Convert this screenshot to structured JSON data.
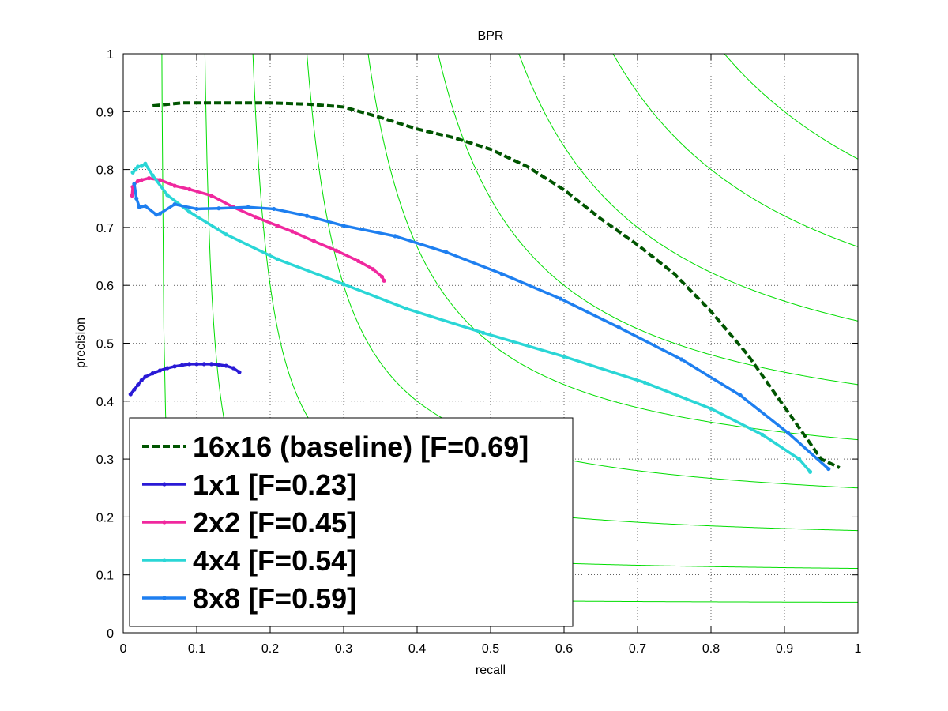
{
  "chart_data": {
    "type": "line",
    "title": "BPR",
    "xlabel": "recall",
    "ylabel": "precision",
    "xlim": [
      0,
      1
    ],
    "ylim": [
      0,
      1
    ],
    "xticks": [
      "0",
      "0.1",
      "0.2",
      "0.3",
      "0.4",
      "0.5",
      "0.6",
      "0.7",
      "0.8",
      "0.9",
      "1"
    ],
    "yticks": [
      "0",
      "0.1",
      "0.2",
      "0.3",
      "0.4",
      "0.5",
      "0.6",
      "0.7",
      "0.8",
      "0.9",
      "1"
    ],
    "grid": true,
    "legend_position": "bottom-left",
    "iso_f_curves": {
      "color": "#00dd00",
      "f_values": [
        0.1,
        0.2,
        0.3,
        0.4,
        0.5,
        0.6,
        0.7,
        0.8,
        0.9
      ]
    },
    "series": [
      {
        "name": "16x16 (baseline) [F=0.69]",
        "color": "#005500",
        "dashed": true,
        "markers": false,
        "x": [
          0.04,
          0.08,
          0.15,
          0.2,
          0.25,
          0.3,
          0.35,
          0.4,
          0.45,
          0.5,
          0.55,
          0.6,
          0.65,
          0.7,
          0.75,
          0.8,
          0.85,
          0.9,
          0.95,
          0.975
        ],
        "y": [
          0.91,
          0.915,
          0.915,
          0.915,
          0.913,
          0.908,
          0.89,
          0.87,
          0.855,
          0.835,
          0.805,
          0.765,
          0.715,
          0.67,
          0.62,
          0.555,
          0.48,
          0.39,
          0.3,
          0.285
        ]
      },
      {
        "name": "1x1 [F=0.23]",
        "color": "#2a1ad6",
        "dashed": false,
        "markers": true,
        "x": [
          0.01,
          0.015,
          0.02,
          0.025,
          0.03,
          0.04,
          0.05,
          0.06,
          0.07,
          0.08,
          0.09,
          0.1,
          0.11,
          0.12,
          0.13,
          0.14,
          0.15,
          0.158
        ],
        "y": [
          0.412,
          0.42,
          0.428,
          0.436,
          0.442,
          0.448,
          0.453,
          0.457,
          0.46,
          0.462,
          0.464,
          0.464,
          0.464,
          0.464,
          0.463,
          0.461,
          0.457,
          0.45
        ]
      },
      {
        "name": "2x2 [F=0.45]",
        "color": "#f0289e",
        "dashed": false,
        "markers": true,
        "x": [
          0.012,
          0.013,
          0.015,
          0.02,
          0.025,
          0.035,
          0.05,
          0.07,
          0.09,
          0.12,
          0.15,
          0.18,
          0.21,
          0.23,
          0.26,
          0.29,
          0.32,
          0.34,
          0.352,
          0.355
        ],
        "y": [
          0.755,
          0.77,
          0.775,
          0.78,
          0.782,
          0.785,
          0.782,
          0.772,
          0.766,
          0.755,
          0.735,
          0.718,
          0.703,
          0.693,
          0.676,
          0.66,
          0.642,
          0.628,
          0.615,
          0.608
        ]
      },
      {
        "name": "4x4 [F=0.54]",
        "color": "#2ad6d6",
        "dashed": false,
        "markers": true,
        "x": [
          0.013,
          0.017,
          0.02,
          0.025,
          0.03,
          0.04,
          0.06,
          0.09,
          0.14,
          0.21,
          0.3,
          0.385,
          0.49,
          0.6,
          0.71,
          0.8,
          0.87,
          0.92,
          0.935
        ],
        "y": [
          0.795,
          0.8,
          0.805,
          0.806,
          0.81,
          0.79,
          0.756,
          0.727,
          0.688,
          0.645,
          0.602,
          0.56,
          0.518,
          0.477,
          0.432,
          0.387,
          0.342,
          0.3,
          0.278
        ]
      },
      {
        "name": "8x8 [F=0.59]",
        "color": "#1e7ff0",
        "dashed": false,
        "markers": true,
        "x": [
          0.015,
          0.018,
          0.022,
          0.03,
          0.045,
          0.05,
          0.07,
          0.1,
          0.13,
          0.17,
          0.205,
          0.25,
          0.3,
          0.37,
          0.44,
          0.515,
          0.595,
          0.675,
          0.76,
          0.84,
          0.905,
          0.96
        ],
        "y": [
          0.775,
          0.75,
          0.735,
          0.737,
          0.722,
          0.724,
          0.74,
          0.732,
          0.733,
          0.735,
          0.732,
          0.72,
          0.703,
          0.685,
          0.657,
          0.62,
          0.577,
          0.527,
          0.472,
          0.41,
          0.345,
          0.283
        ]
      }
    ]
  }
}
